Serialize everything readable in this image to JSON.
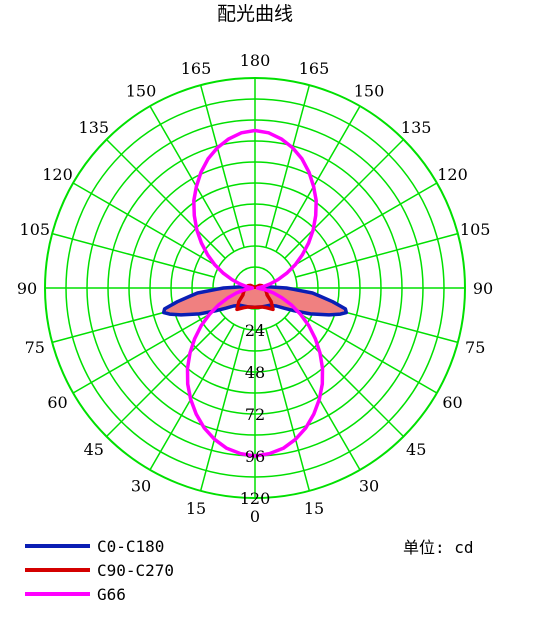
{
  "chart_data": {
    "type": "polar",
    "title": "配光曲线",
    "unit_label": "单位: cd",
    "angle_labels": {
      "top": "180",
      "bottom": "0",
      "left": [
        "165",
        "150",
        "135",
        "120",
        "105",
        "90",
        "75",
        "60",
        "45",
        "30",
        "15"
      ],
      "right": [
        "165",
        "150",
        "135",
        "120",
        "105",
        "90",
        "75",
        "60",
        "45",
        "30",
        "15"
      ]
    },
    "radial_ticks": [
      "24",
      "48",
      "72",
      "96",
      "120"
    ],
    "r_max": 120,
    "angle_step_deg": 15,
    "grid": true,
    "grid_color": "#00e000",
    "legend_placement": "bottom-left",
    "series": [
      {
        "name": "C0-C180",
        "color": "#0a1eb4",
        "fill": "#f08080",
        "gamma": [
          0,
          10,
          20,
          30,
          40,
          50,
          55,
          60,
          65,
          70,
          73,
          75,
          77,
          80,
          83,
          85,
          88,
          90,
          100,
          120,
          150,
          180
        ],
        "intensity": [
          11,
          11,
          11.5,
          12,
          13,
          16,
          20,
          26,
          35,
          45,
          51,
          54,
          53,
          45,
          37,
          33,
          22,
          18,
          5,
          1,
          0.5,
          0.5
        ]
      },
      {
        "name": "C90-C270",
        "color": "#d40000",
        "fill": "#f08080",
        "gamma": [
          0,
          10,
          20,
          30,
          40,
          50,
          60,
          70,
          80,
          90,
          100,
          110,
          120,
          135,
          150,
          165,
          180
        ],
        "intensity": [
          11,
          11.2,
          11.5,
          13,
          16,
          12,
          8,
          7,
          6,
          5,
          5,
          4,
          3,
          1,
          0.5,
          0.5,
          0.5
        ]
      },
      {
        "name": "G66",
        "color": "#ff00ff",
        "gamma": [
          0,
          5,
          10,
          15,
          20,
          25,
          30,
          35,
          40,
          45,
          50,
          55,
          60,
          65,
          70,
          75,
          80,
          90,
          100,
          105,
          110,
          115,
          120,
          125,
          130,
          135,
          140,
          145,
          150,
          155,
          160,
          165,
          170,
          175,
          180
        ],
        "intensity": [
          96,
          95,
          93,
          89.5,
          85,
          79.5,
          73.5,
          67,
          60,
          52.5,
          45,
          37.5,
          30,
          23,
          16.5,
          11,
          6.5,
          1.5,
          5,
          9,
          14,
          20,
          26.5,
          33,
          40,
          47,
          54,
          61,
          67,
          73,
          78.5,
          83,
          86.5,
          89,
          90
        ]
      }
    ]
  }
}
